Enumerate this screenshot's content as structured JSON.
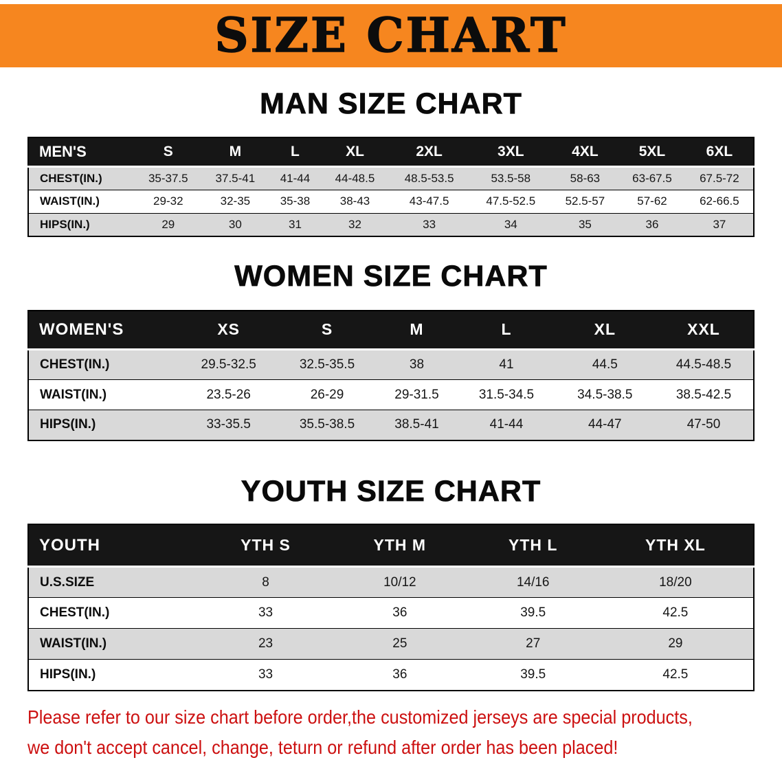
{
  "banner": {
    "title": "SIZE CHART"
  },
  "colors": {
    "banner_bg": "#f6861f",
    "header_bg": "#161616",
    "stripe": "#d9d9d9",
    "notice": "#cc1010"
  },
  "sections": [
    {
      "id": "men",
      "heading": "MAN SIZE CHART",
      "table": {
        "header": [
          "MEN'S",
          "S",
          "M",
          "L",
          "XL",
          "2XL",
          "3XL",
          "4XL",
          "5XL",
          "6XL"
        ],
        "rows": [
          {
            "label": "CHEST(IN.)",
            "values": [
              "35-37.5",
              "37.5-41",
              "41-44",
              "44-48.5",
              "48.5-53.5",
              "53.5-58",
              "58-63",
              "63-67.5",
              "67.5-72"
            ]
          },
          {
            "label": "WAIST(IN.)",
            "values": [
              "29-32",
              "32-35",
              "35-38",
              "38-43",
              "43-47.5",
              "47.5-52.5",
              "52.5-57",
              "57-62",
              "62-66.5"
            ]
          },
          {
            "label": "HIPS(IN.)",
            "values": [
              "29",
              "30",
              "31",
              "32",
              "33",
              "34",
              "35",
              "36",
              "37"
            ]
          }
        ]
      }
    },
    {
      "id": "women",
      "heading": "WOMEN SIZE CHART",
      "table": {
        "header": [
          "WOMEN'S",
          "XS",
          "S",
          "M",
          "L",
          "XL",
          "XXL"
        ],
        "rows": [
          {
            "label": "CHEST(IN.)",
            "values": [
              "29.5-32.5",
              "32.5-35.5",
              "38",
              "41",
              "44.5",
              "44.5-48.5"
            ]
          },
          {
            "label": "WAIST(IN.)",
            "values": [
              "23.5-26",
              "26-29",
              "29-31.5",
              "31.5-34.5",
              "34.5-38.5",
              "38.5-42.5"
            ]
          },
          {
            "label": "HIPS(IN.)",
            "values": [
              "33-35.5",
              "35.5-38.5",
              "38.5-41",
              "41-44",
              "44-47",
              "47-50"
            ]
          }
        ]
      }
    },
    {
      "id": "youth",
      "heading": "YOUTH SIZE CHART",
      "table": {
        "header": [
          "YOUTH",
          "YTH S",
          "YTH M",
          "YTH L",
          "YTH XL"
        ],
        "rows": [
          {
            "label": "U.S.SIZE",
            "values": [
              "8",
              "10/12",
              "14/16",
              "18/20"
            ]
          },
          {
            "label": "CHEST(IN.)",
            "values": [
              "33",
              "36",
              "39.5",
              "42.5"
            ]
          },
          {
            "label": "WAIST(IN.)",
            "values": [
              "23",
              "25",
              "27",
              "29"
            ]
          },
          {
            "label": "HIPS(IN.)",
            "values": [
              "33",
              "36",
              "39.5",
              "42.5"
            ]
          }
        ]
      }
    }
  ],
  "footer": {
    "line1": "Please refer to our size chart before order,the customized jerseys are special products,",
    "line2": "we don't accept cancel, change, teturn or refund after order has been placed!"
  }
}
